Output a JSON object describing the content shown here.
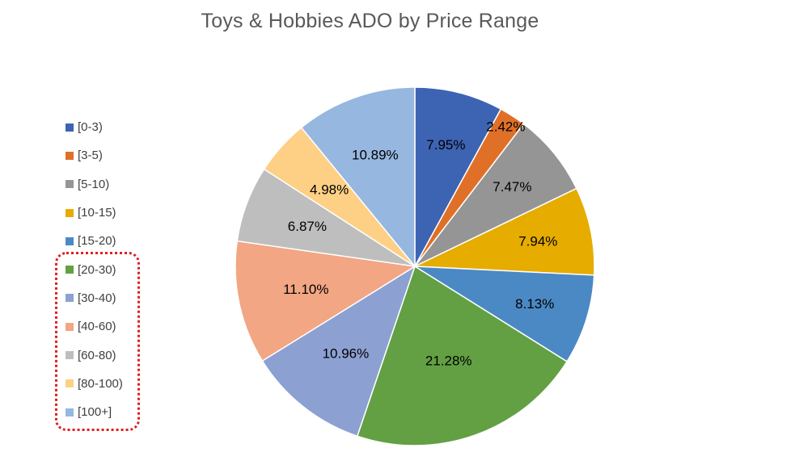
{
  "chart_data": {
    "type": "pie",
    "title": "Toys & Hobbies ADO by Price Range",
    "legend_position": "left",
    "categories": [
      "[0-3)",
      "[3-5)",
      "[5-10)",
      "[10-15)",
      "[15-20)",
      "[20-30)",
      "[30-40)",
      "[40-60)",
      "[60-80)",
      "[80-100)",
      "[100+]"
    ],
    "values": [
      7.95,
      2.42,
      7.47,
      7.94,
      8.13,
      21.28,
      10.96,
      11.1,
      6.87,
      4.98,
      10.89
    ],
    "labels": [
      "7.95%",
      "2.42%",
      "7.47%",
      "7.94%",
      "8.13%",
      "21.28%",
      "10.96%",
      "11.10%",
      "6.87%",
      "4.98%",
      "10.89%"
    ],
    "colors": [
      "#3d63b3",
      "#e07027",
      "#959595",
      "#e6ac00",
      "#4b89c4",
      "#62a043",
      "#8da0d2",
      "#f2a683",
      "#bebebe",
      "#fdd085",
      "#96b7e0"
    ],
    "highlight": {
      "categories": [
        "[20-30)",
        "[30-40)",
        "[40-60)",
        "[60-80)",
        "[80-100)",
        "[100+]"
      ],
      "style": "red-dotted-rounded-box",
      "color": "#e02020"
    }
  }
}
